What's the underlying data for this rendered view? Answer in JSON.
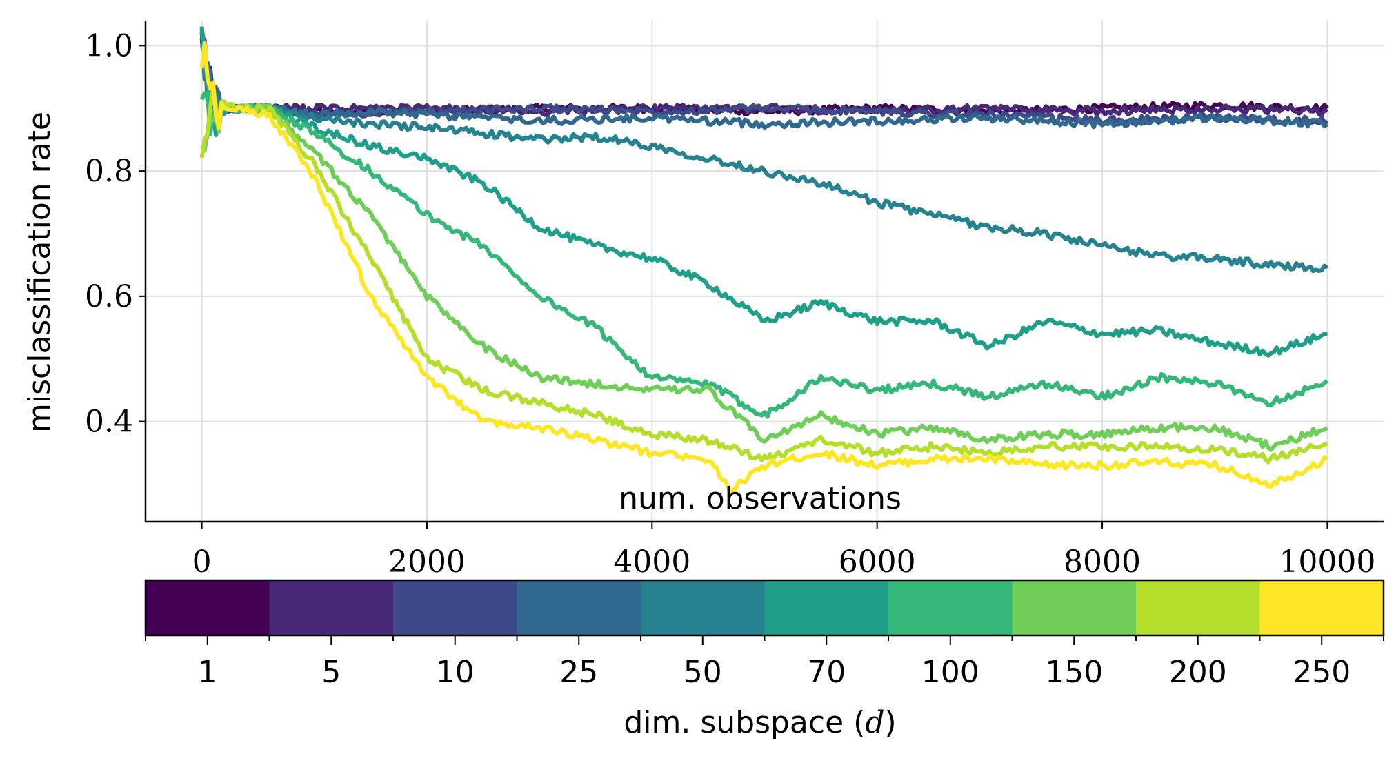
{
  "chart_data": {
    "type": "line",
    "xlabel": "num.  observations",
    "ylabel": "misclassification rate",
    "xlim": [
      -500,
      10500
    ],
    "ylim": [
      0.24,
      1.04
    ],
    "xticks": [
      0,
      2000,
      4000,
      6000,
      8000,
      10000
    ],
    "xtick_labels": [
      "0",
      "2000",
      "4000",
      "6000",
      "8000",
      "10000"
    ],
    "yticks": [
      0.4,
      0.6,
      0.8,
      1.0
    ],
    "ytick_labels": [
      "0.4",
      "0.6",
      "0.8",
      "1.0"
    ],
    "grid": true,
    "legend": "none",
    "colorbar": {
      "placement": "bottom",
      "label": "dim.  subspace (",
      "label_var": "d",
      "label_end": ")",
      "ticks": [
        "1",
        "5",
        "10",
        "25",
        "50",
        "70",
        "100",
        "150",
        "200",
        "250"
      ],
      "colors": [
        "#440154",
        "#482878",
        "#3e4989",
        "#31688e",
        "#26828e",
        "#1f9e89",
        "#35b779",
        "#6ece58",
        "#b5de2b",
        "#fde725"
      ]
    },
    "series": [
      {
        "d": 1,
        "color": "#440154",
        "x": [
          0,
          100,
          300,
          600,
          1000,
          2000,
          3000,
          4000,
          5000,
          6000,
          7000,
          8000,
          9000,
          10000
        ],
        "y": [
          1.0,
          0.9,
          0.9,
          0.9,
          0.895,
          0.895,
          0.9,
          0.9,
          0.895,
          0.9,
          0.895,
          0.9,
          0.905,
          0.9
        ]
      },
      {
        "d": 5,
        "color": "#482878",
        "x": [
          0,
          100,
          300,
          600,
          1000,
          2000,
          3000,
          4000,
          5000,
          6000,
          7000,
          8000,
          9000,
          10000
        ],
        "y": [
          1.0,
          0.9,
          0.9,
          0.9,
          0.9,
          0.9,
          0.895,
          0.9,
          0.9,
          0.895,
          0.9,
          0.895,
          0.9,
          0.895
        ]
      },
      {
        "d": 10,
        "color": "#3e4989",
        "x": [
          0,
          100,
          300,
          600,
          1000,
          2000,
          3000,
          4000,
          5000,
          6000,
          7000,
          8000,
          9000,
          10000
        ],
        "y": [
          1.0,
          0.9,
          0.9,
          0.9,
          0.89,
          0.895,
          0.9,
          0.895,
          0.9,
          0.895,
          0.89,
          0.88,
          0.885,
          0.88
        ]
      },
      {
        "d": 25,
        "color": "#31688e",
        "x": [
          0,
          100,
          300,
          600,
          1000,
          1500,
          2000,
          3000,
          4000,
          5000,
          6000,
          7000,
          8000,
          9000,
          10000
        ],
        "y": [
          1.0,
          0.9,
          0.9,
          0.9,
          0.89,
          0.895,
          0.89,
          0.88,
          0.885,
          0.875,
          0.88,
          0.885,
          0.875,
          0.885,
          0.875
        ]
      },
      {
        "d": 50,
        "color": "#26828e",
        "x": [
          0,
          100,
          300,
          600,
          1000,
          1500,
          2000,
          2500,
          3000,
          3500,
          4000,
          4500,
          5000,
          5500,
          6000,
          6500,
          7000,
          7500,
          8000,
          8500,
          9000,
          9500,
          10000
        ],
        "y": [
          1.0,
          0.9,
          0.9,
          0.9,
          0.885,
          0.875,
          0.87,
          0.86,
          0.85,
          0.855,
          0.84,
          0.82,
          0.8,
          0.78,
          0.75,
          0.73,
          0.71,
          0.7,
          0.68,
          0.665,
          0.66,
          0.65,
          0.645
        ]
      },
      {
        "d": 70,
        "color": "#1f9e89",
        "x": [
          0,
          100,
          300,
          600,
          1000,
          1500,
          2000,
          2500,
          3000,
          3500,
          4000,
          4500,
          5000,
          5500,
          6000,
          6500,
          7000,
          7500,
          8000,
          8500,
          9000,
          9500,
          10000
        ],
        "y": [
          1.0,
          0.88,
          0.9,
          0.9,
          0.87,
          0.84,
          0.82,
          0.78,
          0.71,
          0.68,
          0.66,
          0.62,
          0.56,
          0.59,
          0.56,
          0.56,
          0.52,
          0.56,
          0.54,
          0.545,
          0.525,
          0.51,
          0.54
        ]
      },
      {
        "d": 100,
        "color": "#35b779",
        "x": [
          0,
          100,
          300,
          600,
          1000,
          1500,
          2000,
          2500,
          3000,
          3500,
          4000,
          4500,
          5000,
          5500,
          6000,
          6500,
          7000,
          7500,
          8000,
          8500,
          9000,
          9500,
          10000
        ],
        "y": [
          0.88,
          0.9,
          0.9,
          0.9,
          0.86,
          0.8,
          0.73,
          0.68,
          0.6,
          0.55,
          0.47,
          0.46,
          0.41,
          0.47,
          0.45,
          0.46,
          0.44,
          0.46,
          0.44,
          0.47,
          0.46,
          0.43,
          0.465
        ]
      },
      {
        "d": 150,
        "color": "#6ece58",
        "x": [
          0,
          100,
          300,
          600,
          1000,
          1500,
          2000,
          2500,
          3000,
          3500,
          4000,
          4500,
          5000,
          5500,
          6000,
          6500,
          7000,
          7500,
          8000,
          8500,
          9000,
          9500,
          10000
        ],
        "y": [
          0.8,
          0.9,
          0.9,
          0.9,
          0.83,
          0.73,
          0.6,
          0.52,
          0.47,
          0.46,
          0.45,
          0.45,
          0.37,
          0.41,
          0.38,
          0.39,
          0.37,
          0.38,
          0.38,
          0.39,
          0.39,
          0.36,
          0.39
        ]
      },
      {
        "d": 200,
        "color": "#b5de2b",
        "x": [
          0,
          100,
          300,
          600,
          1000,
          1500,
          2000,
          2500,
          3000,
          3500,
          4000,
          4500,
          5000,
          5500,
          6000,
          6500,
          7000,
          7500,
          8000,
          8500,
          9000,
          9500,
          10000
        ],
        "y": [
          0.86,
          0.91,
          0.9,
          0.9,
          0.81,
          0.66,
          0.5,
          0.45,
          0.43,
          0.41,
          0.38,
          0.37,
          0.34,
          0.37,
          0.35,
          0.36,
          0.35,
          0.36,
          0.36,
          0.36,
          0.355,
          0.34,
          0.365
        ]
      },
      {
        "d": 250,
        "color": "#fde725",
        "x": [
          0,
          100,
          300,
          600,
          1000,
          1500,
          2000,
          2500,
          3000,
          3500,
          4000,
          4500,
          4700,
          5000,
          5500,
          6000,
          6500,
          7000,
          7500,
          8000,
          8500,
          9000,
          9500,
          10000
        ],
        "y": [
          1.0,
          0.91,
          0.9,
          0.89,
          0.79,
          0.6,
          0.47,
          0.4,
          0.39,
          0.37,
          0.35,
          0.34,
          0.29,
          0.33,
          0.35,
          0.33,
          0.34,
          0.34,
          0.33,
          0.33,
          0.335,
          0.33,
          0.3,
          0.34
        ]
      }
    ]
  }
}
